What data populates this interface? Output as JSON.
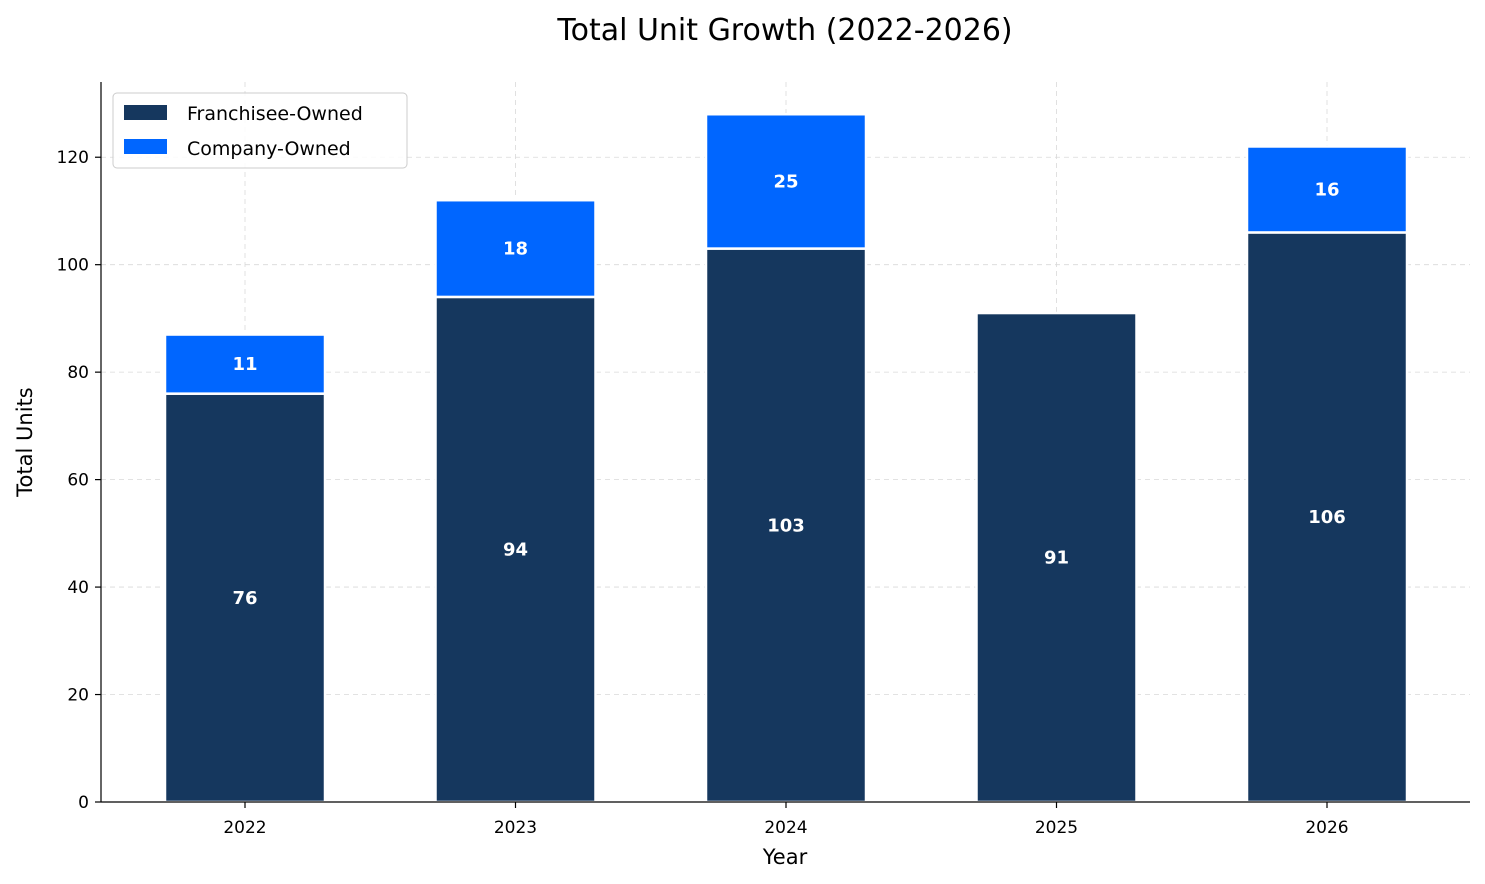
{
  "chart_data": {
    "type": "bar",
    "stacked": true,
    "title": "Total Unit Growth (2022-2026)",
    "xlabel": "Year",
    "ylabel": "Total Units",
    "categories": [
      "2022",
      "2023",
      "2024",
      "2025",
      "2026"
    ],
    "series": [
      {
        "name": "Franchisee-Owned",
        "color": "#15375e",
        "values": [
          76,
          94,
          103,
          91,
          106
        ]
      },
      {
        "name": "Company-Owned",
        "color": "#0066ff",
        "values": [
          11,
          18,
          25,
          0,
          16
        ]
      }
    ],
    "ylim": [
      0,
      134
    ],
    "yticks": [
      0,
      20,
      40,
      60,
      80,
      100,
      120
    ],
    "grid": true,
    "legend": "upper-left"
  }
}
